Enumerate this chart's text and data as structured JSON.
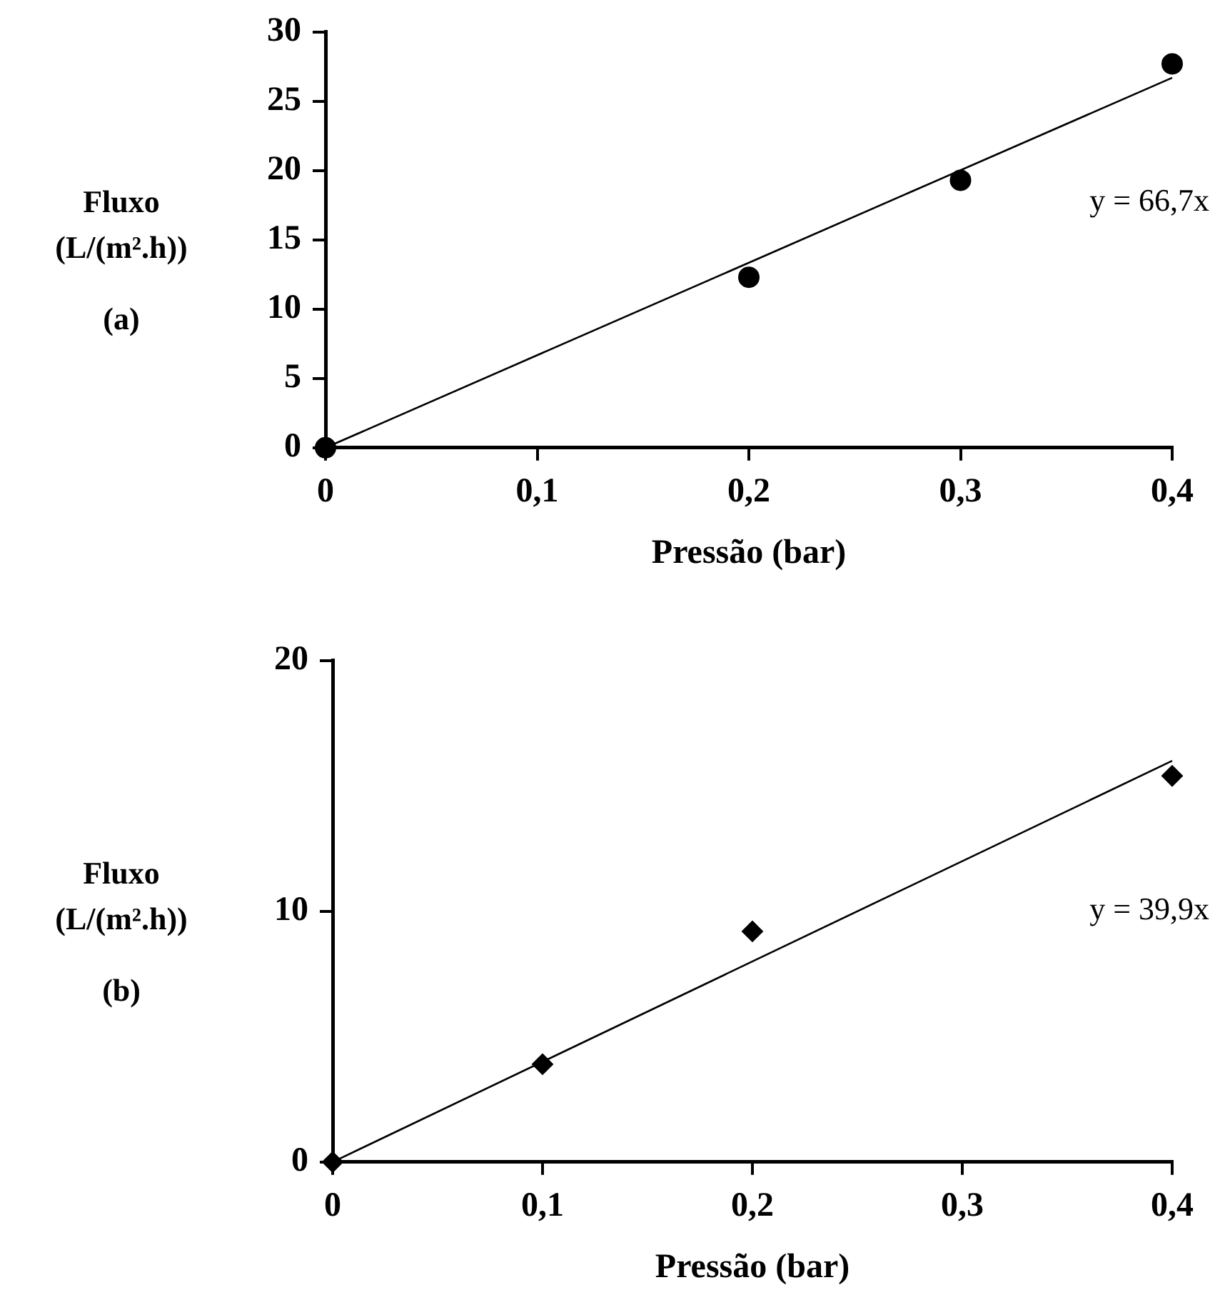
{
  "chart_data": [
    {
      "type": "scatter",
      "xlabel": "Pressão (bar)",
      "ylabel": "Fluxo (L/(m².h))",
      "xlim": [
        0,
        0.4
      ],
      "xticks": [
        {
          "value": 0,
          "label": "0"
        },
        {
          "value": 0.1,
          "label": "0,1"
        },
        {
          "value": 0.2,
          "label": "0,2"
        },
        {
          "value": 0.3,
          "label": "0,3"
        },
        {
          "value": 0.4,
          "label": "0,4"
        }
      ],
      "ylim": [
        0,
        30
      ],
      "yticks": [
        0,
        5,
        10,
        15,
        20,
        25,
        30
      ],
      "annotations": [
        "(a)",
        "y = 66,7x"
      ],
      "series": [
        {
          "color": "#000000",
          "marker": "circle",
          "x": [
            0,
            0.2,
            0.3,
            0.4
          ],
          "values": [
            0,
            12.3,
            19.3,
            27.7
          ]
        },
        {
          "type": "line",
          "color": "#000000",
          "marker": "none",
          "x": [
            0,
            0.4
          ],
          "values": [
            0,
            26.7
          ]
        }
      ]
    },
    {
      "type": "scatter",
      "xlabel": "Pressão (bar)",
      "ylabel": "Fluxo (L/(m².h))",
      "xlim": [
        0,
        0.4
      ],
      "xticks": [
        {
          "value": 0,
          "label": "0"
        },
        {
          "value": 0.1,
          "label": "0,1"
        },
        {
          "value": 0.2,
          "label": "0,2"
        },
        {
          "value": 0.3,
          "label": "0,3"
        },
        {
          "value": 0.4,
          "label": "0,4"
        }
      ],
      "ylim": [
        0,
        20
      ],
      "yticks": [
        0,
        10,
        20
      ],
      "annotations": [
        "(b)",
        "y = 39,9x"
      ],
      "series": [
        {
          "color": "#000000",
          "marker": "diamond",
          "x": [
            0,
            0.1,
            0.2,
            0.4
          ],
          "values": [
            0,
            3.9,
            9.2,
            15.4
          ]
        },
        {
          "type": "line",
          "color": "#000000",
          "marker": "none",
          "x": [
            0,
            0.4
          ],
          "values": [
            0,
            16.0
          ]
        }
      ]
    }
  ]
}
